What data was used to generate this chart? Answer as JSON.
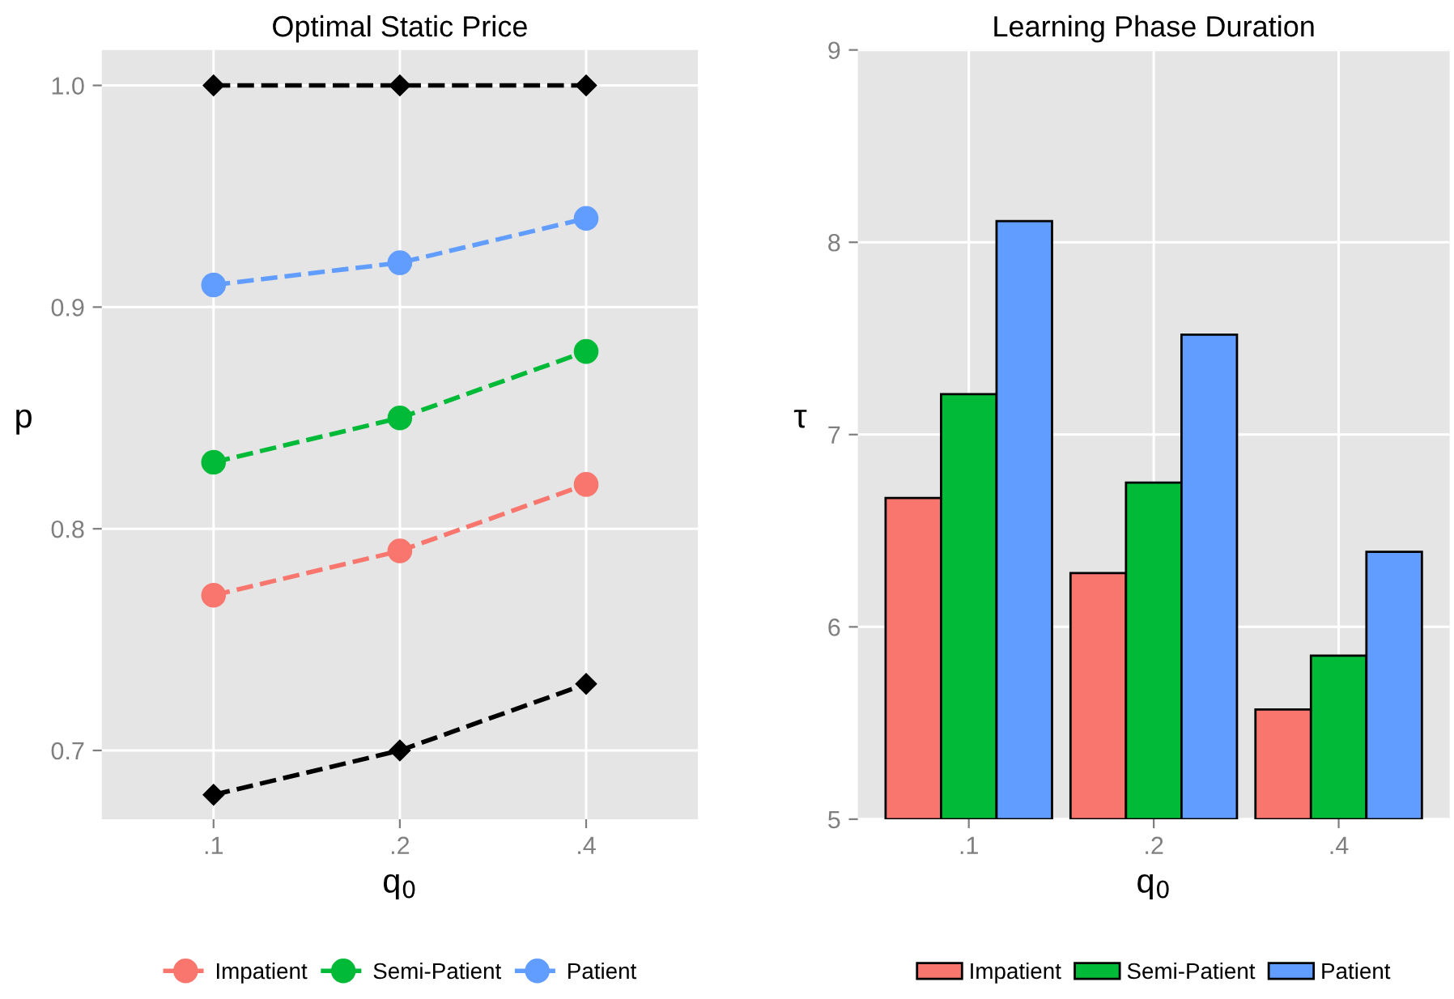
{
  "chart_data": [
    {
      "type": "line",
      "title": "Optimal Static Price",
      "xlabel": "q$_{0}$",
      "ylabel": "p",
      "categories": [
        ".1",
        ".2",
        ".4"
      ],
      "ylim": [
        0.669,
        1.016
      ],
      "yticks": [
        {
          "value": 0.7,
          "label": "0.7"
        },
        {
          "value": 0.8,
          "label": "0.8"
        },
        {
          "value": 0.9,
          "label": "0.9"
        },
        {
          "value": 1.0,
          "label": "1.0"
        }
      ],
      "grid": true,
      "legend": "bottom",
      "line_style": "dashed",
      "series": [
        {
          "color": "#000000",
          "marker": "diamond",
          "values": [
            1.0,
            1.0,
            1.0
          ]
        },
        {
          "name": "Impatient",
          "color": "#f8766d",
          "marker": "circle",
          "values": [
            0.77,
            0.79,
            0.82
          ]
        },
        {
          "name": "Semi-Patient",
          "color": "#00ba38",
          "marker": "circle",
          "values": [
            0.83,
            0.85,
            0.88
          ]
        },
        {
          "name": "Patient",
          "color": "#619cff",
          "marker": "circle",
          "values": [
            0.91,
            0.92,
            0.94
          ]
        },
        {
          "color": "#000000",
          "marker": "diamond",
          "values": [
            0.68,
            0.7,
            0.73
          ]
        }
      ]
    },
    {
      "type": "bar",
      "title": "Learning Phase Duration",
      "xlabel": "q$_{0}$",
      "ylabel": "τ",
      "categories": [
        ".1",
        ".2",
        ".4"
      ],
      "ylim": [
        5,
        9
      ],
      "yticks": [
        5,
        6,
        7,
        8,
        9
      ],
      "grid": true,
      "legend": "bottom",
      "series": [
        {
          "name": "Impatient",
          "color": "#f8766d",
          "values": [
            6.67,
            6.28,
            5.57
          ]
        },
        {
          "name": "Semi-Patient",
          "color": "#00ba38",
          "values": [
            7.21,
            6.75,
            5.85
          ]
        },
        {
          "name": "Patient",
          "color": "#619cff",
          "values": [
            8.11,
            7.52,
            6.39
          ]
        }
      ]
    }
  ]
}
